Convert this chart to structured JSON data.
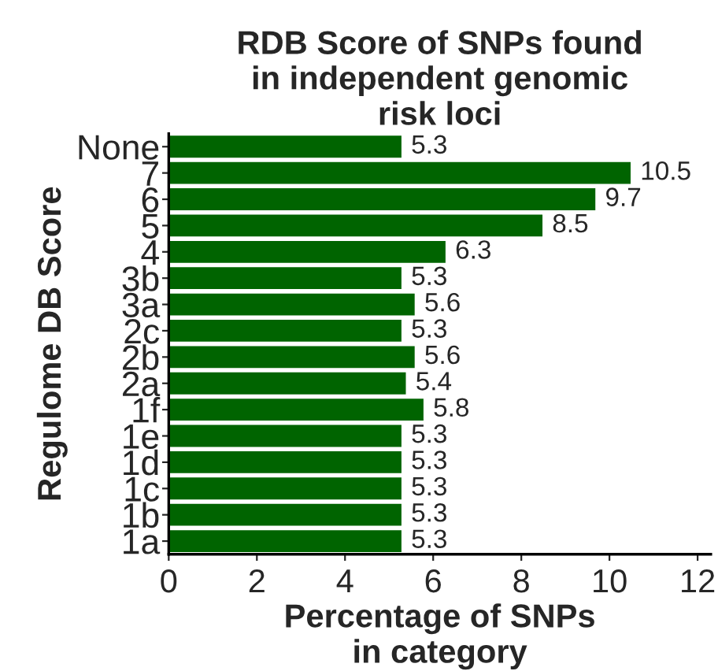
{
  "chart_data": {
    "type": "bar",
    "orientation": "horizontal",
    "title": "RDB Score of SNPs found\nin independent genomic\nrisk loci",
    "xlabel": "Percentage of SNPs\nin category",
    "ylabel": "Regulome DB Score",
    "categories": [
      "None",
      "7",
      "6",
      "5",
      "4",
      "3b",
      "3a",
      "2c",
      "2b",
      "2a",
      "1f",
      "1e",
      "1d",
      "1c",
      "1b",
      "1a"
    ],
    "values": [
      5.3,
      10.5,
      9.7,
      8.5,
      6.3,
      5.3,
      5.6,
      5.3,
      5.6,
      5.4,
      5.8,
      5.3,
      5.3,
      5.3,
      5.3,
      5.3
    ],
    "color": "#006400",
    "xlim": [
      0,
      12.3
    ],
    "xticks": [
      0,
      2,
      4,
      6,
      8,
      10,
      12
    ],
    "data_labels": true,
    "grid": false,
    "legend": false
  }
}
